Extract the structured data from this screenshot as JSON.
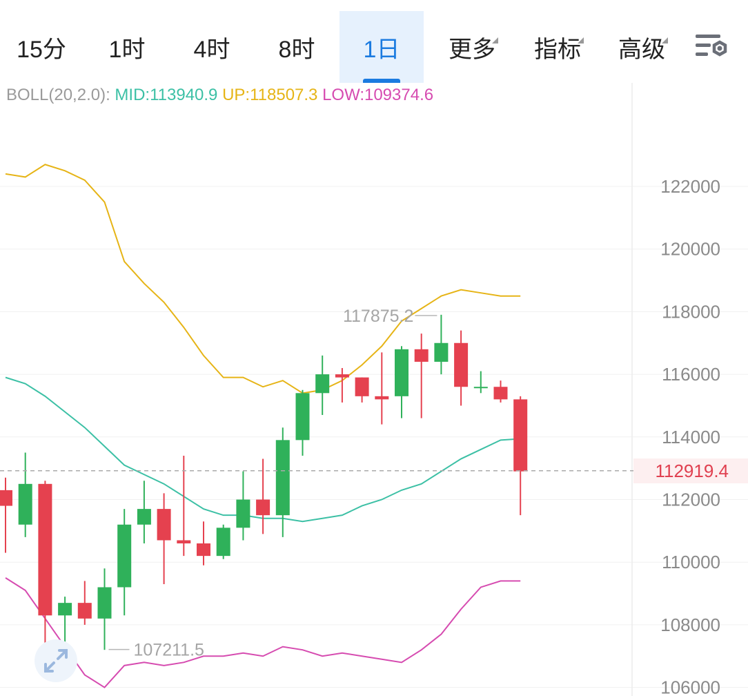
{
  "timeframe_tabs": [
    {
      "label": "15分",
      "active": false,
      "dropdown": false
    },
    {
      "label": "1时",
      "active": false,
      "dropdown": false
    },
    {
      "label": "4时",
      "active": false,
      "dropdown": false
    },
    {
      "label": "8时",
      "active": false,
      "dropdown": false
    },
    {
      "label": "1日",
      "active": true,
      "dropdown": false
    },
    {
      "label": "更多",
      "active": false,
      "dropdown": true
    },
    {
      "label": "指标",
      "active": false,
      "dropdown": true
    },
    {
      "label": "高级",
      "active": false,
      "dropdown": true
    }
  ],
  "settings_icon": "chart-settings-icon",
  "indicator": {
    "params": "BOLL(20,2.0):",
    "mid": "MID:113940.9",
    "up": "UP:118507.3",
    "low": "LOW:109374.6"
  },
  "current_price": "112919.4",
  "zoom_icon": "expand-arrows-icon",
  "colors": {
    "up_candle": "#2fb15a",
    "down_candle": "#e5414f",
    "boll_mid": "#3cc0a5",
    "boll_up": "#e6b416",
    "boll_low": "#d64bb0",
    "active_tab": "#1b7be0"
  },
  "chart_data": {
    "type": "candlestick",
    "ylim": [
      106000,
      123500
    ],
    "y_ticks": [
      "122000",
      "120000",
      "118000",
      "116000",
      "114000",
      "112000",
      "110000",
      "108000",
      "106000"
    ],
    "candles": [
      {
        "open": 112300,
        "high": 112700,
        "low": 110300,
        "close": 111800
      },
      {
        "open": 111200,
        "high": 113500,
        "low": 110800,
        "close": 112500
      },
      {
        "open": 112500,
        "high": 112600,
        "low": 107400,
        "close": 108300
      },
      {
        "open": 108300,
        "high": 108900,
        "low": 107400,
        "close": 108700
      },
      {
        "open": 108700,
        "high": 109400,
        "low": 108000,
        "close": 108200
      },
      {
        "open": 108200,
        "high": 109800,
        "low": 107200,
        "close": 109200
      },
      {
        "open": 109200,
        "high": 111700,
        "low": 108300,
        "close": 111200
      },
      {
        "open": 111200,
        "high": 112600,
        "low": 110600,
        "close": 111700
      },
      {
        "open": 111700,
        "high": 112200,
        "low": 109300,
        "close": 110700
      },
      {
        "open": 110700,
        "high": 113400,
        "low": 110200,
        "close": 110600
      },
      {
        "open": 110600,
        "high": 111300,
        "low": 109900,
        "close": 110200
      },
      {
        "open": 110200,
        "high": 111200,
        "low": 110100,
        "close": 111100
      },
      {
        "open": 111100,
        "high": 112900,
        "low": 110700,
        "close": 112000
      },
      {
        "open": 112000,
        "high": 113300,
        "low": 110900,
        "close": 111500
      },
      {
        "open": 111500,
        "high": 114300,
        "low": 110800,
        "close": 113900
      },
      {
        "open": 113900,
        "high": 115500,
        "low": 113400,
        "close": 115400
      },
      {
        "open": 115400,
        "high": 116600,
        "low": 114700,
        "close": 116000
      },
      {
        "open": 116000,
        "high": 116200,
        "low": 115100,
        "close": 115900
      },
      {
        "open": 115900,
        "high": 115900,
        "low": 115100,
        "close": 115300
      },
      {
        "open": 115300,
        "high": 116700,
        "low": 114400,
        "close": 115200
      },
      {
        "open": 115300,
        "high": 116900,
        "low": 114600,
        "close": 116800
      },
      {
        "open": 116800,
        "high": 117300,
        "low": 114600,
        "close": 116400
      },
      {
        "open": 116400,
        "high": 117900,
        "low": 116000,
        "close": 117000
      },
      {
        "open": 117000,
        "high": 117400,
        "low": 115000,
        "close": 115600
      },
      {
        "open": 115600,
        "high": 116100,
        "low": 115400,
        "close": 115600
      },
      {
        "open": 115600,
        "high": 115800,
        "low": 115100,
        "close": 115200
      },
      {
        "open": 115200,
        "high": 115300,
        "low": 111500,
        "close": 112900
      }
    ],
    "series": [
      {
        "values": [
          122400,
          122300,
          122700,
          122500,
          122200,
          121500,
          119600,
          118900,
          118300,
          117500,
          116600,
          115900,
          115900,
          115600,
          115800,
          115400,
          115500,
          115800,
          116300,
          116900,
          117700,
          118100,
          118500,
          118700,
          118600,
          118500,
          118500
        ]
      },
      {
        "values": [
          115900,
          115700,
          115300,
          114800,
          114300,
          113700,
          113100,
          112800,
          112500,
          112100,
          111700,
          111500,
          111500,
          111400,
          111400,
          111300,
          111400,
          111500,
          111800,
          112000,
          112300,
          112500,
          112900,
          113300,
          113600,
          113900,
          113940
        ]
      },
      {
        "values": [
          109500,
          109100,
          108200,
          107300,
          106400,
          106000,
          106700,
          106800,
          106700,
          106800,
          107000,
          107000,
          107100,
          107000,
          107300,
          107200,
          107000,
          107100,
          107000,
          106900,
          106800,
          107200,
          107700,
          108500,
          109200,
          109400,
          109400
        ]
      }
    ],
    "annotations": {
      "high": "117875.2",
      "low": "107211.5"
    },
    "last_price": 112919.4
  }
}
